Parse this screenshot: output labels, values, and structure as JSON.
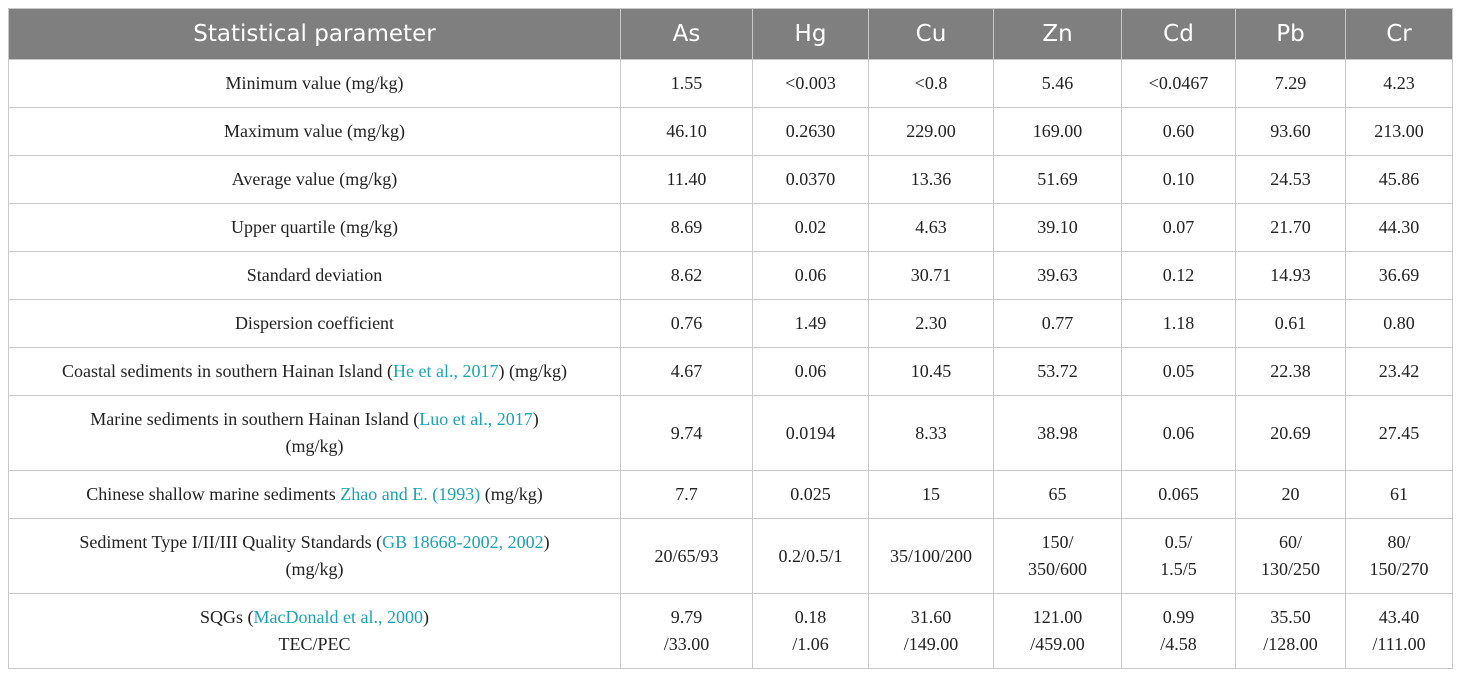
{
  "table": {
    "header": [
      "Statistical parameter",
      "As",
      "Hg",
      "Cu",
      "Zn",
      "Cd",
      "Pb",
      "Cr"
    ],
    "rows": [
      {
        "label": [
          [
            "Minimum value (mg/kg)"
          ]
        ],
        "values": [
          "1.55",
          "<0.003",
          "<0.8",
          "5.46",
          "<0.0467",
          "7.29",
          "4.23"
        ]
      },
      {
        "label": [
          [
            "Maximum value (mg/kg)"
          ]
        ],
        "values": [
          "46.10",
          "0.2630",
          "229.00",
          "169.00",
          "0.60",
          "93.60",
          "213.00"
        ]
      },
      {
        "label": [
          [
            "Average value (mg/kg)"
          ]
        ],
        "values": [
          "11.40",
          "0.0370",
          "13.36",
          "51.69",
          "0.10",
          "24.53",
          "45.86"
        ]
      },
      {
        "label": [
          [
            "Upper quartile (mg/kg)"
          ]
        ],
        "values": [
          "8.69",
          "0.02",
          "4.63",
          "39.10",
          "0.07",
          "21.70",
          "44.30"
        ]
      },
      {
        "label": [
          [
            "Standard deviation"
          ]
        ],
        "values": [
          "8.62",
          "0.06",
          "30.71",
          "39.63",
          "0.12",
          "14.93",
          "36.69"
        ]
      },
      {
        "label": [
          [
            "Dispersion coefficient"
          ]
        ],
        "values": [
          "0.76",
          "1.49",
          "2.30",
          "0.77",
          "1.18",
          "0.61",
          "0.80"
        ]
      },
      {
        "label": [
          [
            "Coastal sediments in southern Hainan Island (",
            {
              "ref": "He et al., 2017"
            },
            ") (mg/kg)"
          ]
        ],
        "values": [
          "4.67",
          "0.06",
          "10.45",
          "53.72",
          "0.05",
          "22.38",
          "23.42"
        ]
      },
      {
        "label": [
          [
            "Marine sediments in southern Hainan Island (",
            {
              "ref": "Luo et al., 2017"
            },
            ")"
          ],
          [
            "(mg/kg)"
          ]
        ],
        "values": [
          "9.74",
          "0.0194",
          "8.33",
          "38.98",
          "0.06",
          "20.69",
          "27.45"
        ]
      },
      {
        "label": [
          [
            "Chinese shallow marine sediments ",
            {
              "ref": "Zhao and E. (1993)"
            },
            " (mg/kg)"
          ]
        ],
        "values": [
          "7.7",
          "0.025",
          "15",
          "65",
          "0.065",
          "20",
          "61"
        ]
      },
      {
        "label": [
          [
            "Sediment Type I/II/III Quality Standards (",
            {
              "ref": "GB 18668-2002, 2002"
            },
            ")"
          ],
          [
            "(mg/kg)"
          ]
        ],
        "values": [
          "20/65/93",
          "0.2/0.5/1",
          "35/100/200",
          [
            "150/",
            "350/600"
          ],
          [
            "0.5/",
            "1.5/5"
          ],
          [
            "60/",
            "130/250"
          ],
          [
            "80/",
            "150/270"
          ]
        ]
      },
      {
        "label": [
          [
            "SQGs (",
            {
              "ref": "MacDonald et al., 2000"
            },
            ")"
          ],
          [
            "TEC/PEC"
          ]
        ],
        "values": [
          [
            "9.79",
            "/33.00"
          ],
          [
            "0.18",
            "/1.06"
          ],
          [
            "31.60",
            "/149.00"
          ],
          [
            "121.00",
            "/459.00"
          ],
          [
            "0.99",
            "/4.58"
          ],
          [
            "35.50",
            "/128.00"
          ],
          [
            "43.40",
            "/111.00"
          ]
        ]
      }
    ]
  }
}
